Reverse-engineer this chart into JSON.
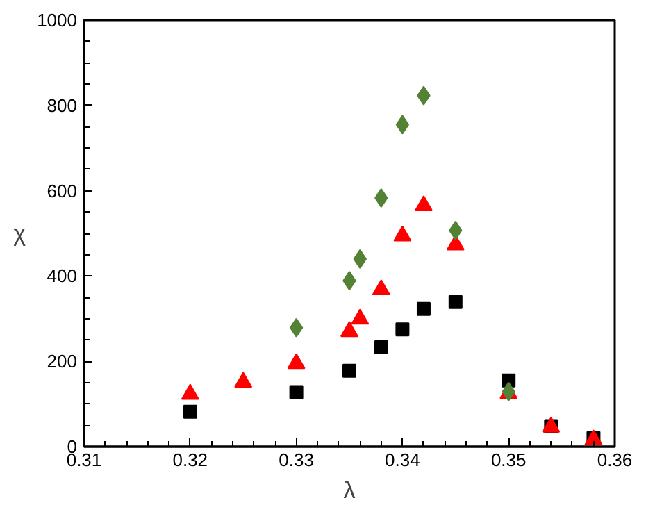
{
  "chart_data": {
    "type": "scatter",
    "xlabel": "λ",
    "ylabel": "χ",
    "xlim": [
      0.31,
      0.36
    ],
    "xticks": [
      0.31,
      0.32,
      0.33,
      0.34,
      0.35,
      0.36
    ],
    "ylim": [
      0,
      1000
    ],
    "yticks": [
      0,
      200,
      400,
      600,
      800,
      1000
    ],
    "grid": false,
    "series": [
      {
        "color": "#000000",
        "marker": "square",
        "x": [
          0.32,
          0.33,
          0.335,
          0.338,
          0.34,
          0.342,
          0.345,
          0.35,
          0.354,
          0.358
        ],
        "values": [
          82,
          128,
          178,
          233,
          275,
          323,
          339,
          155,
          48,
          20
        ]
      },
      {
        "color": "#ff0000",
        "marker": "triangle",
        "x": [
          0.32,
          0.325,
          0.33,
          0.335,
          0.336,
          0.338,
          0.34,
          0.342,
          0.345,
          0.35,
          0.354,
          0.358
        ],
        "values": [
          123,
          151,
          195,
          270,
          299,
          368,
          494,
          565,
          473,
          125,
          46,
          16
        ]
      },
      {
        "color": "#548235",
        "marker": "diamond",
        "x": [
          0.33,
          0.335,
          0.336,
          0.338,
          0.34,
          0.342,
          0.345,
          0.35
        ],
        "values": [
          279,
          389,
          440,
          583,
          755,
          823,
          507,
          129
        ]
      }
    ]
  }
}
